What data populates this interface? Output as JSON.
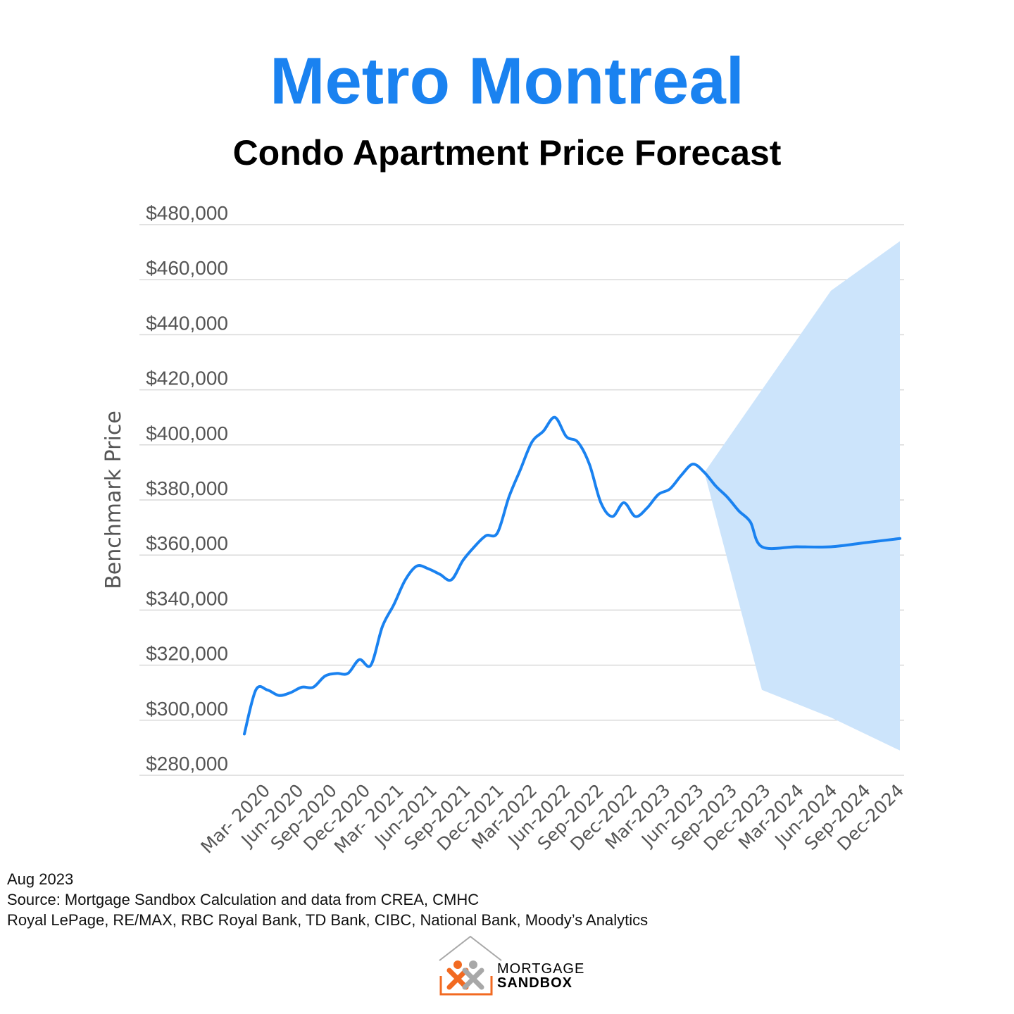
{
  "title": "Metro Montreal",
  "subtitle": "Condo Apartment Price Forecast",
  "colors": {
    "title": "#1a82f0",
    "line": "#1a82f0",
    "band": "#cce4fb",
    "grid": "#d9d9d9",
    "axis_text": "#555555",
    "logo_orange": "#f26a21",
    "logo_gray": "#a8a8a8"
  },
  "chart_data": {
    "type": "line",
    "ylabel": "Benchmark Price",
    "xlabel": "",
    "ylim": [
      280000,
      480000
    ],
    "yticks": [
      "$480,000",
      "$460,000",
      "$440,000",
      "$420,000",
      "$400,000",
      "$380,000",
      "$360,000",
      "$340,000",
      "$320,000",
      "$300,000",
      "$280,000"
    ],
    "ytick_values": [
      480000,
      460000,
      440000,
      420000,
      400000,
      380000,
      360000,
      340000,
      320000,
      300000,
      280000
    ],
    "xticks": [
      "Mar- 2020",
      "Jun-2020",
      "Sep-2020",
      "Dec-2020",
      "Mar- 2021",
      "Jun-2021",
      "Sep-2021",
      "Dec-2021",
      "Mar-2022",
      "Jun-2022",
      "Sep-2022",
      "Dec-2022",
      "Mar-2023",
      "Jun-2023",
      "Sep-2023",
      "Dec-2023",
      "Mar-2024",
      "Jun-2024",
      "Sep-2024",
      "Dec-2024"
    ],
    "grid": true,
    "legend": "none",
    "series": [
      {
        "values": [
          [
            "2020-03",
            295000
          ],
          [
            "2020-04",
            311000
          ],
          [
            "2020-05",
            311000
          ],
          [
            "2020-06",
            309000
          ],
          [
            "2020-07",
            310000
          ],
          [
            "2020-08",
            312000
          ],
          [
            "2020-09",
            312000
          ],
          [
            "2020-10",
            316000
          ],
          [
            "2020-11",
            317000
          ],
          [
            "2020-12",
            317000
          ],
          [
            "2021-01",
            322000
          ],
          [
            "2021-02",
            320000
          ],
          [
            "2021-03",
            334000
          ],
          [
            "2021-04",
            342000
          ],
          [
            "2021-05",
            351000
          ],
          [
            "2021-06",
            356000
          ],
          [
            "2021-07",
            355000
          ],
          [
            "2021-08",
            353000
          ],
          [
            "2021-09",
            351000
          ],
          [
            "2021-10",
            358000
          ],
          [
            "2021-11",
            363000
          ],
          [
            "2021-12",
            367000
          ],
          [
            "2022-01",
            368000
          ],
          [
            "2022-02",
            381000
          ],
          [
            "2022-03",
            391000
          ],
          [
            "2022-04",
            401000
          ],
          [
            "2022-05",
            405000
          ],
          [
            "2022-06",
            410000
          ],
          [
            "2022-07",
            403000
          ],
          [
            "2022-08",
            401000
          ],
          [
            "2022-09",
            393000
          ],
          [
            "2022-10",
            379000
          ],
          [
            "2022-11",
            374000
          ],
          [
            "2022-12",
            379000
          ],
          [
            "2023-01",
            374000
          ],
          [
            "2023-02",
            377000
          ],
          [
            "2023-03",
            382000
          ],
          [
            "2023-04",
            384000
          ],
          [
            "2023-05",
            389000
          ],
          [
            "2023-06",
            393000
          ],
          [
            "2023-07",
            390000
          ],
          [
            "2023-08",
            385000
          ],
          [
            "2023-09",
            381000
          ],
          [
            "2023-10",
            376000
          ],
          [
            "2023-11",
            372000
          ],
          [
            "2023-12",
            363000
          ],
          [
            "2024-03",
            363000
          ],
          [
            "2024-06",
            363000
          ],
          [
            "2024-09",
            364500
          ],
          [
            "2024-12",
            366000
          ]
        ]
      }
    ],
    "forecast_band": {
      "upper": [
        [
          "2023-07",
          390000
        ],
        [
          "2023-12",
          420000
        ],
        [
          "2024-06",
          456000
        ],
        [
          "2024-12",
          474000
        ]
      ],
      "lower": [
        [
          "2023-07",
          390000
        ],
        [
          "2023-12",
          311000
        ],
        [
          "2024-06",
          301000
        ],
        [
          "2024-12",
          289000
        ]
      ]
    }
  },
  "footer": {
    "date": "Aug 2023",
    "source": "Source: Mortgage Sandbox Calculation and data from CREA, CMHC",
    "contributors": "Royal LePage, RE/MAX, RBC Royal Bank, TD Bank, CIBC, National Bank, Moody’s Analytics"
  },
  "logo": {
    "line1": "MORTGAGE",
    "line2": "SANDBOX"
  }
}
